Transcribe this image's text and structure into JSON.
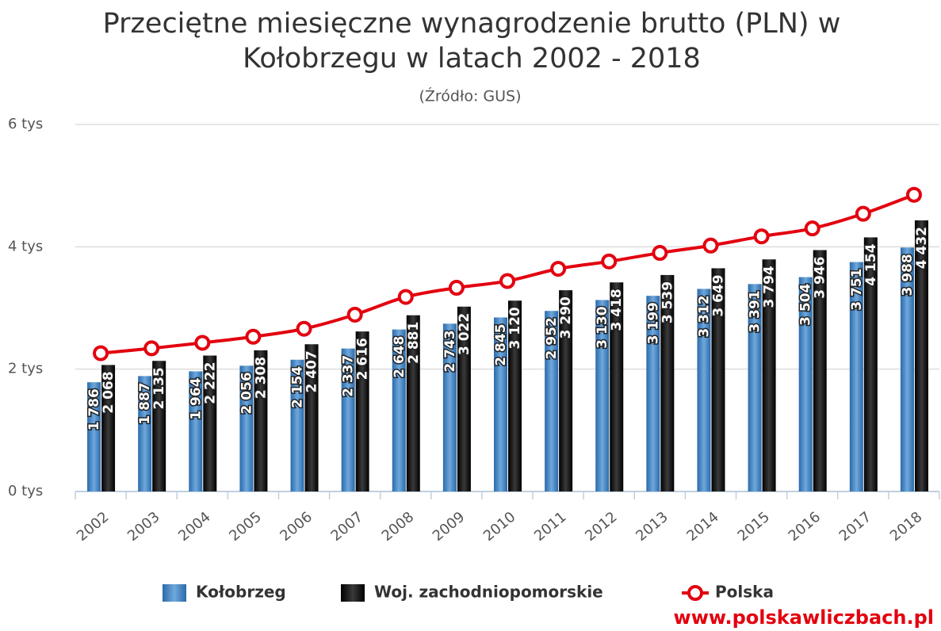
{
  "chart_data": {
    "type": "bar_line",
    "title": "Przeciętne miesięczne wynagrodzenie brutto (PLN) w Kołobrzegu w latach 2002 - 2018",
    "subtitle": "(Źródło: GUS)",
    "categories": [
      "2002",
      "2003",
      "2004",
      "2005",
      "2006",
      "2007",
      "2008",
      "2009",
      "2010",
      "2011",
      "2012",
      "2013",
      "2014",
      "2015",
      "2016",
      "2017",
      "2018"
    ],
    "series": [
      {
        "name": "Kołobrzeg",
        "type": "bar",
        "color": "#3d7fc1",
        "values": [
          1786,
          1887,
          1964,
          2056,
          2154,
          2337,
          2648,
          2743,
          2845,
          2952,
          3130,
          3199,
          3312,
          3391,
          3504,
          3751,
          3988
        ],
        "value_labels": [
          "1 786",
          "1 887",
          "1 964",
          "2 056",
          "2 154",
          "2 337",
          "2 648",
          "2 743",
          "2 845",
          "2 952",
          "3 130",
          "3 199",
          "3 312",
          "3 391",
          "3 504",
          "3 751",
          "3 988"
        ]
      },
      {
        "name": "Woj. zachodniopomorskie",
        "type": "bar",
        "color": "#151515",
        "values": [
          2068,
          2135,
          2222,
          2308,
          2407,
          2616,
          2881,
          3022,
          3120,
          3290,
          3418,
          3539,
          3649,
          3794,
          3946,
          4154,
          4432
        ],
        "value_labels": [
          "2 068",
          "2 135",
          "2 222",
          "2 308",
          "2 407",
          "2 616",
          "2 881",
          "3 022",
          "3 120",
          "3 290",
          "3 418",
          "3 539",
          "3 649",
          "3 794",
          "3 946",
          "4 154",
          "4 432"
        ]
      },
      {
        "name": "Polska",
        "type": "line",
        "color": "#e3000f",
        "values": [
          2260,
          2340,
          2430,
          2530,
          2660,
          2890,
          3180,
          3330,
          3440,
          3640,
          3760,
          3900,
          4020,
          4170,
          4300,
          4540,
          4850
        ]
      }
    ],
    "ylim": [
      0,
      6000
    ],
    "yticks": [
      {
        "value": 0,
        "label": "0 tys"
      },
      {
        "value": 2000,
        "label": "2 tys"
      },
      {
        "value": 4000,
        "label": "4 tys"
      },
      {
        "value": 6000,
        "label": "6 tys"
      }
    ],
    "grid": true,
    "legend": "bottom",
    "watermark": "www.polskawliczbach.pl"
  }
}
